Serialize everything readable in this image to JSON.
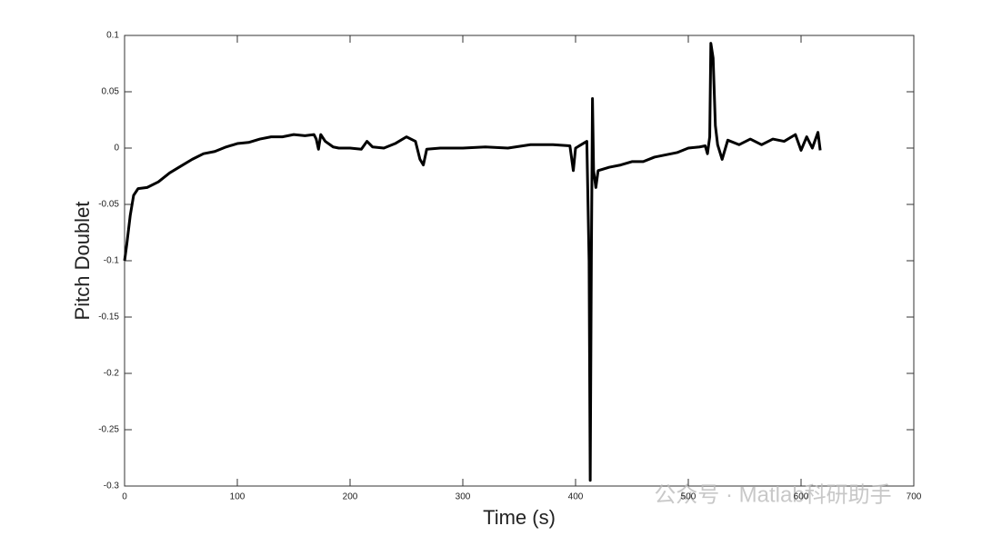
{
  "chart_data": {
    "type": "line",
    "x_label": "Time (s)",
    "y_label": "Pitch Doublet",
    "xlim": [
      0,
      700
    ],
    "xticks": [
      0,
      100,
      200,
      300,
      400,
      500,
      600,
      700
    ],
    "ylim": [
      -0.3,
      0.1
    ],
    "yticks": [
      0.1,
      0.05,
      0,
      -0.05,
      -0.1,
      -0.15,
      -0.2,
      -0.25,
      -0.3
    ],
    "grid": false,
    "box": true,
    "x": [
      0,
      2,
      5,
      8,
      12,
      20,
      30,
      40,
      50,
      60,
      70,
      80,
      90,
      100,
      110,
      120,
      130,
      140,
      150,
      160,
      168,
      170,
      172,
      174,
      178,
      185,
      190,
      200,
      210,
      215,
      220,
      230,
      240,
      250,
      258,
      262,
      265,
      268,
      280,
      300,
      320,
      340,
      360,
      380,
      395,
      398,
      400,
      410,
      412,
      413,
      414,
      415,
      416,
      418,
      420,
      430,
      440,
      450,
      460,
      470,
      480,
      490,
      500,
      510,
      515,
      517,
      519,
      520,
      522,
      524,
      526,
      530,
      535,
      545,
      555,
      565,
      575,
      585,
      595,
      600,
      605,
      610,
      615,
      617
    ],
    "series": [
      {
        "name": "Pitch Doublet",
        "color": "#000000",
        "values": [
          -0.1,
          -0.085,
          -0.06,
          -0.042,
          -0.036,
          -0.035,
          -0.03,
          -0.022,
          -0.016,
          -0.01,
          -0.005,
          -0.003,
          0.001,
          0.004,
          0.005,
          0.008,
          0.01,
          0.01,
          0.012,
          0.011,
          0.012,
          0.008,
          -0.001,
          0.012,
          0.006,
          0.001,
          0,
          0,
          -0.001,
          0.006,
          0.001,
          0,
          0.004,
          0.01,
          0.006,
          -0.01,
          -0.015,
          -0.001,
          0,
          0,
          0.001,
          0,
          0.003,
          0.003,
          0.002,
          -0.02,
          0,
          0.006,
          -0.1,
          -0.295,
          -0.1,
          0.044,
          -0.02,
          -0.035,
          -0.02,
          -0.017,
          -0.015,
          -0.012,
          -0.012,
          -0.008,
          -0.006,
          -0.004,
          0,
          0.001,
          0.002,
          -0.005,
          0.01,
          0.093,
          0.08,
          0.02,
          0.003,
          -0.01,
          0.007,
          0.003,
          0.008,
          0.003,
          0.008,
          0.006,
          0.012,
          -0.002,
          0.01,
          0,
          0.014,
          -0.002
        ]
      }
    ]
  },
  "watermark": "公众号 · Matlab科研助手"
}
